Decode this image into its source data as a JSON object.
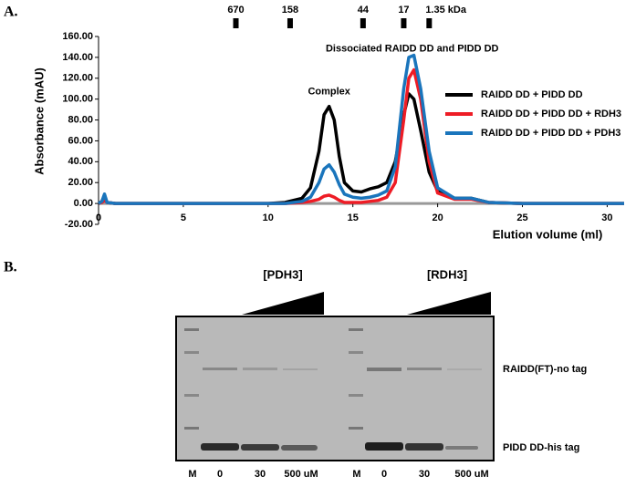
{
  "chart_data": {
    "type": "line",
    "panel_label": "A.",
    "xlabel": "Elution volume (ml)",
    "ylabel": "Absorbance (mAU)",
    "x": [
      0,
      0.2,
      0.35,
      0.5,
      1,
      5,
      10,
      11,
      12,
      12.5,
      13,
      13.3,
      13.6,
      13.9,
      14.2,
      14.5,
      15,
      15.5,
      16,
      16.5,
      17,
      17.5,
      18,
      18.3,
      18.6,
      19,
      19.5,
      20,
      21,
      22,
      23,
      25,
      31
    ],
    "series": [
      {
        "name": "RAIDD DD + PIDD DD",
        "color": "#000000",
        "values": [
          0,
          2,
          8,
          1,
          0,
          0,
          0,
          1,
          5,
          15,
          50,
          85,
          93,
          80,
          45,
          20,
          12,
          11,
          14,
          16,
          20,
          40,
          85,
          105,
          100,
          70,
          30,
          12,
          5,
          5,
          1,
          0,
          0
        ]
      },
      {
        "name": "RAIDD DD + PIDD DD + RDH3",
        "color": "#ee1c25",
        "values": [
          0,
          1,
          3,
          1,
          0,
          0,
          0,
          0,
          1,
          2,
          4,
          7,
          8,
          6,
          3,
          1,
          1,
          1,
          2,
          3,
          6,
          20,
          80,
          120,
          128,
          100,
          40,
          10,
          4,
          4,
          1,
          0,
          0
        ]
      },
      {
        "name": "RAIDD DD + PIDD DD + PDH3",
        "color": "#1a75bc",
        "values": [
          0,
          2,
          9,
          1,
          0,
          0,
          0,
          0,
          2,
          6,
          20,
          33,
          37,
          30,
          18,
          9,
          6,
          5,
          6,
          8,
          12,
          35,
          110,
          140,
          142,
          110,
          50,
          15,
          5,
          5,
          1,
          0,
          0
        ]
      }
    ],
    "xlim": [
      0,
      31
    ],
    "xticks": [
      0,
      5,
      10,
      15,
      20,
      25,
      30
    ],
    "ylim": [
      -20,
      160
    ],
    "yticks": [
      {
        "value": -20,
        "label": "-20.00"
      },
      {
        "value": 0,
        "label": "0.00"
      },
      {
        "value": 20,
        "label": "20.00"
      },
      {
        "value": 40,
        "label": "40.00"
      },
      {
        "value": 60,
        "label": "60.00"
      },
      {
        "value": 80,
        "label": "80.00"
      },
      {
        "value": 100,
        "label": "100.00"
      },
      {
        "value": 120,
        "label": "120.00"
      },
      {
        "value": 140,
        "label": "140.00"
      },
      {
        "value": 160,
        "label": "160.00"
      }
    ],
    "legend": "right",
    "size_markers": [
      {
        "x": 8.1,
        "label": "670"
      },
      {
        "x": 11.3,
        "label": "158"
      },
      {
        "x": 15.6,
        "label": "44"
      },
      {
        "x": 18.0,
        "label": "17"
      },
      {
        "x": 19.5,
        "label": "1.35 kDa"
      }
    ],
    "annotations": [
      {
        "x": 13.6,
        "y": 107,
        "text": "Complex"
      },
      {
        "x": 18.5,
        "y": 148,
        "text": "Dissociated RAIDD DD and PIDD DD"
      }
    ]
  },
  "gel": {
    "panel_label": "B.",
    "groups": [
      "[PDH3]",
      "[RDH3]"
    ],
    "lane_labels": [
      "M",
      "0",
      "30",
      "500 uM",
      "M",
      "0",
      "30",
      "500 uM"
    ],
    "band_labels": [
      "RAIDD(FT)-no tag",
      "PIDD DD-his tag"
    ]
  }
}
